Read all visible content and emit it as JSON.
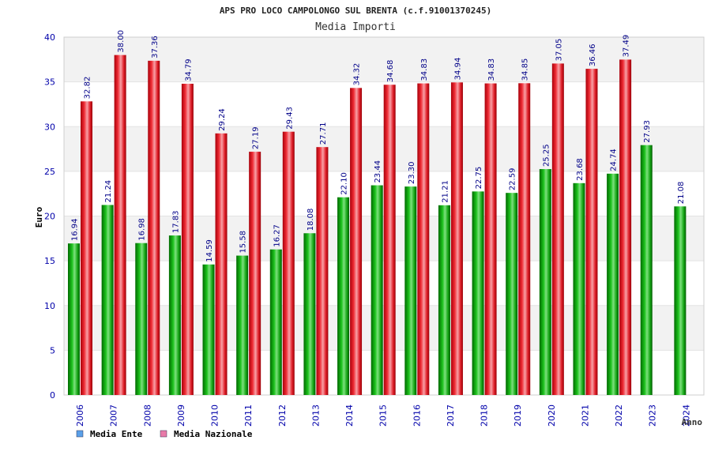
{
  "colors": {
    "ente": "#0fa50f",
    "nazionale": "#e0202a",
    "legend_ente": "#5aa0e8",
    "legend_nazionale": "#e87aa8",
    "band": "#f2f2f2"
  },
  "chart_data": {
    "type": "bar",
    "title": "APS PRO LOCO CAMPOLONGO SUL BRENTA (c.f.91001370245)",
    "subtitle": "Media Importi",
    "ylabel": "Euro",
    "xlabel": "Anno",
    "ylim": [
      0,
      40
    ],
    "yticks": [
      0,
      5,
      10,
      15,
      20,
      25,
      30,
      35,
      40
    ],
    "categories": [
      "2006",
      "2007",
      "2008",
      "2009",
      "2010",
      "2011",
      "2012",
      "2013",
      "2014",
      "2015",
      "2016",
      "2017",
      "2018",
      "2019",
      "2020",
      "2021",
      "2022",
      "2023",
      "2024"
    ],
    "series": [
      {
        "name": "Media Ente",
        "values": [
          16.94,
          21.24,
          16.98,
          17.83,
          14.59,
          15.58,
          16.27,
          18.08,
          22.1,
          23.44,
          23.3,
          21.21,
          22.75,
          22.59,
          25.25,
          23.68,
          24.74,
          27.93,
          21.08
        ],
        "labels": [
          "16.94",
          "21.24",
          "16.98",
          "17.83",
          "14.59",
          "15.58",
          "16.27",
          "18.08",
          "22.10",
          "23.44",
          "23.30",
          "21.21",
          "22.75",
          "22.59",
          "25.25",
          "23.68",
          "24.74",
          "27.93",
          "21.08"
        ]
      },
      {
        "name": "Media Nazionale",
        "values": [
          32.82,
          38.0,
          37.36,
          34.79,
          29.24,
          27.19,
          29.43,
          27.71,
          34.32,
          34.68,
          34.83,
          34.94,
          34.83,
          34.85,
          37.05,
          36.46,
          37.49,
          null,
          null
        ],
        "labels": [
          "32.82",
          "38.00",
          "37.36",
          "34.79",
          "29.24",
          "27.19",
          "29.43",
          "27.71",
          "34.32",
          "34.68",
          "34.83",
          "34.94",
          "34.83",
          "34.85",
          "37.05",
          "36.46",
          "37.49",
          null,
          null
        ]
      }
    ],
    "legend": [
      "Media Ente",
      "Media Nazionale"
    ],
    "legend_position": "bottom-left",
    "grid": true
  }
}
